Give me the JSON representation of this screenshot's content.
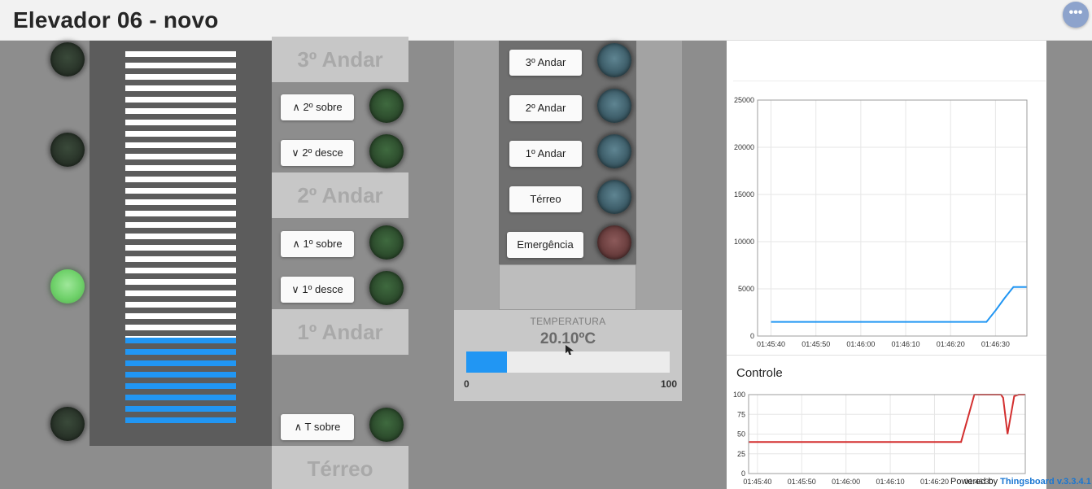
{
  "header": {
    "title": "Elevador 06 - novo",
    "menu_icon": "more-horizontal-icon"
  },
  "floors": [
    {
      "label": "3º Andar"
    },
    {
      "label": "2º Andar"
    },
    {
      "label": "1º Andar"
    },
    {
      "label": "Térreo"
    }
  ],
  "hall_buttons": [
    {
      "label": "∧ 2º sobre"
    },
    {
      "label": "∨ 2º desce"
    },
    {
      "label": "∧ 1º sobre"
    },
    {
      "label": "∨ 1º desce"
    },
    {
      "label": "∧ T sobre"
    }
  ],
  "cabin_buttons": [
    {
      "label": "3º Andar"
    },
    {
      "label": "2º Andar"
    },
    {
      "label": "1º Andar"
    },
    {
      "label": "Térreo"
    },
    {
      "label": "Emergência"
    }
  ],
  "temperature": {
    "label": "TEMPERATURA",
    "value": "20.10ºC",
    "min": "0",
    "max": "100",
    "fill_percent": 20.1
  },
  "colors": {
    "accent": "#2196f3",
    "lamp_on": "#6fd16a",
    "series_1": "#2196f3",
    "series_2": "#d32f2f"
  },
  "shaft": {
    "white_bars": 26,
    "blue_bars": 8
  },
  "chart_data": [
    {
      "type": "line",
      "title": "",
      "xlabel": "",
      "ylabel": "",
      "x": [
        "01:45:40",
        "01:45:50",
        "01:46:00",
        "01:46:10",
        "01:46:20",
        "01:46:30"
      ],
      "ylim": [
        0,
        25000
      ],
      "yticks": [
        "0",
        "5000",
        "10000",
        "15000",
        "20000",
        "25000"
      ],
      "series": [
        {
          "points": [
            [
              0,
              1500
            ],
            [
              10,
              1500
            ],
            [
              20,
              1500
            ],
            [
              30,
              1500
            ],
            [
              40,
              1500
            ],
            [
              46,
              1500
            ],
            [
              48,
              1500
            ],
            [
              50,
              2700
            ],
            [
              52,
              4000
            ],
            [
              54,
              5200
            ],
            [
              57,
              5200
            ]
          ]
        }
      ],
      "grid": true
    },
    {
      "type": "line",
      "title": "Controle",
      "xlabel": "",
      "ylabel": "",
      "x": [
        "01:45:40",
        "01:45:50",
        "01:46:00",
        "01:46:10",
        "01:46:20",
        "01:46:30"
      ],
      "ylim": [
        0,
        100
      ],
      "yticks": [
        "0",
        "25",
        "50",
        "75",
        "100"
      ],
      "series": [
        {
          "points": [
            [
              -2,
              40
            ],
            [
              10,
              40
            ],
            [
              20,
              40
            ],
            [
              30,
              40
            ],
            [
              40,
              40
            ],
            [
              46,
              40
            ],
            [
              48,
              80
            ],
            [
              49,
              100
            ],
            [
              55,
              100
            ],
            [
              55.5,
              96
            ],
            [
              56.5,
              50
            ],
            [
              58,
              98
            ],
            [
              59,
              100
            ],
            [
              60.5,
              100
            ]
          ]
        }
      ],
      "grid": true
    }
  ],
  "footer": {
    "prefix": "Powered by ",
    "brand": "Thingsboard v.3.3.4.1"
  }
}
